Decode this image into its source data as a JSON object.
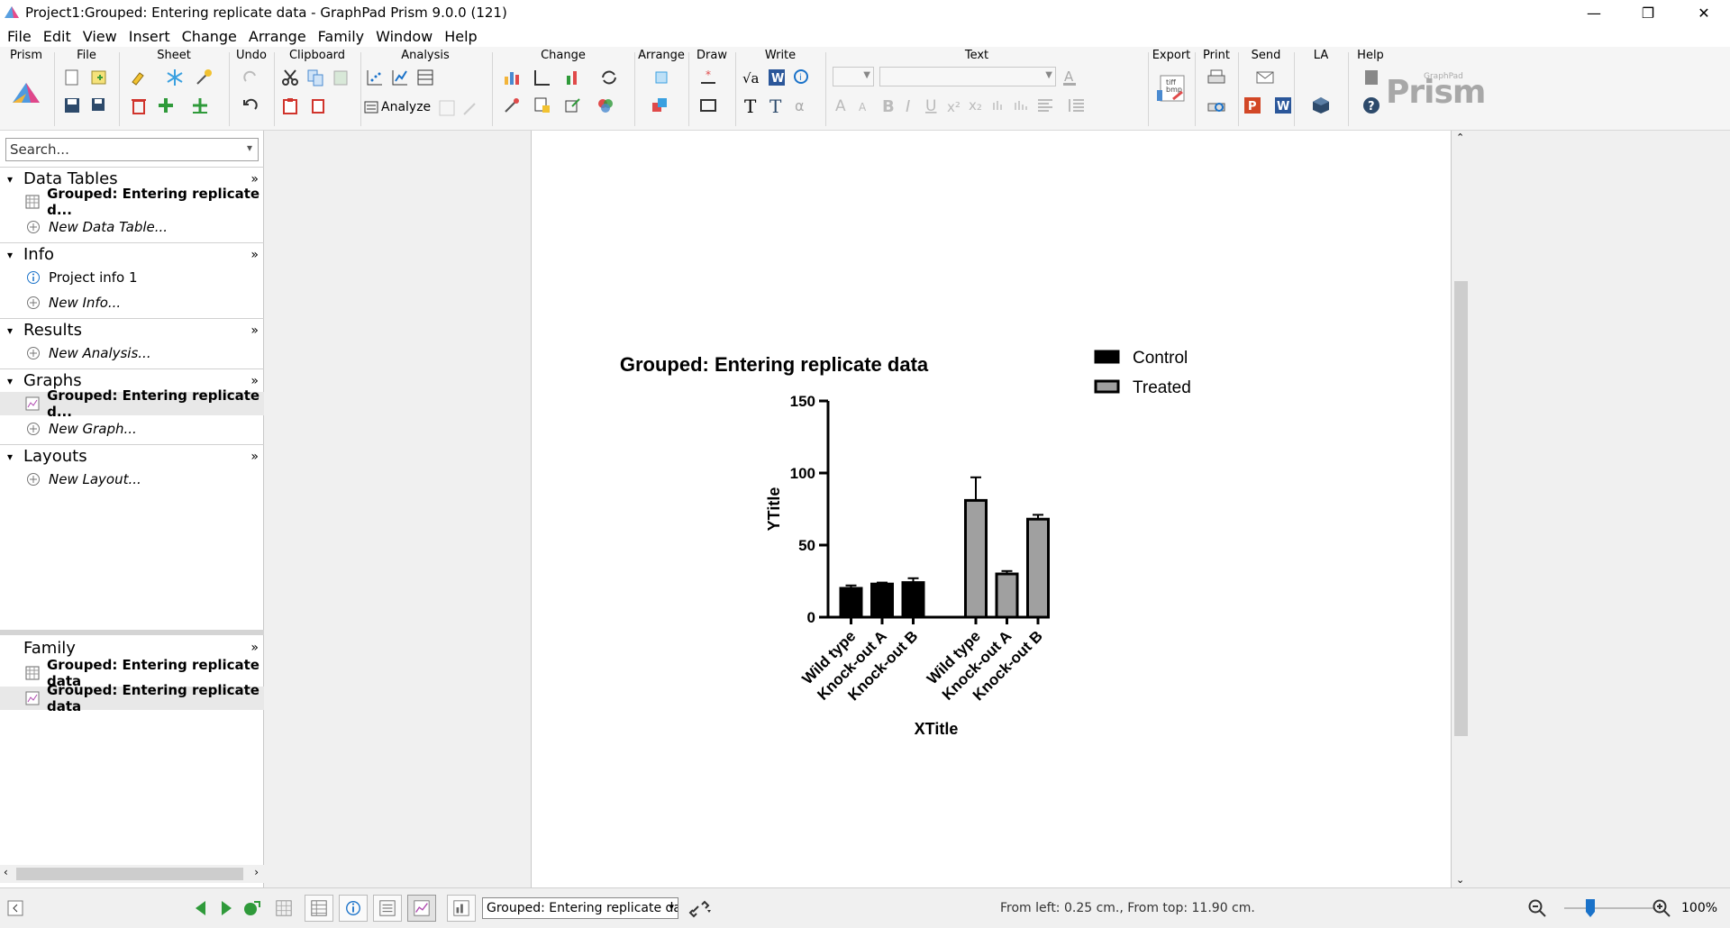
{
  "window": {
    "title": "Project1:Grouped: Entering replicate data - GraphPad Prism 9.0.0 (121)",
    "minimize": "—",
    "restore": "❐",
    "close": "✕"
  },
  "menu": [
    "File",
    "Edit",
    "View",
    "Insert",
    "Change",
    "Arrange",
    "Family",
    "Window",
    "Help"
  ],
  "ribbon": {
    "groups": [
      "Prism",
      "File",
      "Sheet",
      "Undo",
      "Clipboard",
      "Analysis",
      "Change",
      "Arrange",
      "Draw",
      "Write",
      "Text",
      "Export",
      "Print",
      "Send",
      "LA",
      "Help"
    ],
    "analyze_label": "Analyze",
    "brand": "Prism",
    "brand_small": "GraphPad",
    "accent": "#1a72c9"
  },
  "sidebar": {
    "search_placeholder": "Search...",
    "sections": [
      {
        "label": "Data Tables",
        "items": [
          {
            "label": "Grouped: Entering replicate d...",
            "style": "bold",
            "icon": "table-icon"
          },
          {
            "label": "New Data Table...",
            "style": "italic",
            "icon": "add-icon"
          }
        ]
      },
      {
        "label": "Info",
        "items": [
          {
            "label": "Project info 1",
            "style": "normal",
            "icon": "info-icon"
          },
          {
            "label": "New Info...",
            "style": "italic",
            "icon": "add-icon"
          }
        ]
      },
      {
        "label": "Results",
        "items": [
          {
            "label": "New Analysis...",
            "style": "italic",
            "icon": "add-icon"
          }
        ]
      },
      {
        "label": "Graphs",
        "items": [
          {
            "label": "Grouped: Entering replicate d...",
            "style": "bold",
            "icon": "graph-icon",
            "selected": true
          },
          {
            "label": "New Graph...",
            "style": "italic",
            "icon": "add-icon"
          }
        ]
      },
      {
        "label": "Layouts",
        "items": [
          {
            "label": "New Layout...",
            "style": "italic",
            "icon": "add-icon"
          }
        ]
      }
    ],
    "family": {
      "label": "Family",
      "items": [
        {
          "label": "Grouped: Entering replicate data",
          "icon": "table-icon"
        },
        {
          "label": "Grouped: Entering replicate data",
          "icon": "graph-icon",
          "selected": true
        }
      ]
    },
    "more_glyph": "»"
  },
  "status": {
    "sheet_select": "Grouped: Entering replicate dat",
    "position": "From left: 0.25 cm., From top: 11.90 cm.",
    "zoom": "100%",
    "zoom_level": 1.0
  },
  "chart_data": {
    "type": "bar",
    "title": "Grouped: Entering replicate data",
    "xlabel": "XTitle",
    "ylabel": "YTitle",
    "ylim": [
      0,
      150
    ],
    "yticks": [
      0,
      50,
      100,
      150
    ],
    "categories": [
      "Wild type",
      "Knock-out A",
      "Knock-out B"
    ],
    "series": [
      {
        "name": "Control",
        "values": [
          20,
          23,
          24
        ],
        "errors": [
          2,
          1,
          3
        ],
        "color": "#000000"
      },
      {
        "name": "Treated",
        "values": [
          81,
          30,
          68
        ],
        "errors": [
          16,
          2,
          3
        ],
        "color": "#a0a0a0"
      }
    ],
    "legend_position": "top-right",
    "grid": false
  }
}
